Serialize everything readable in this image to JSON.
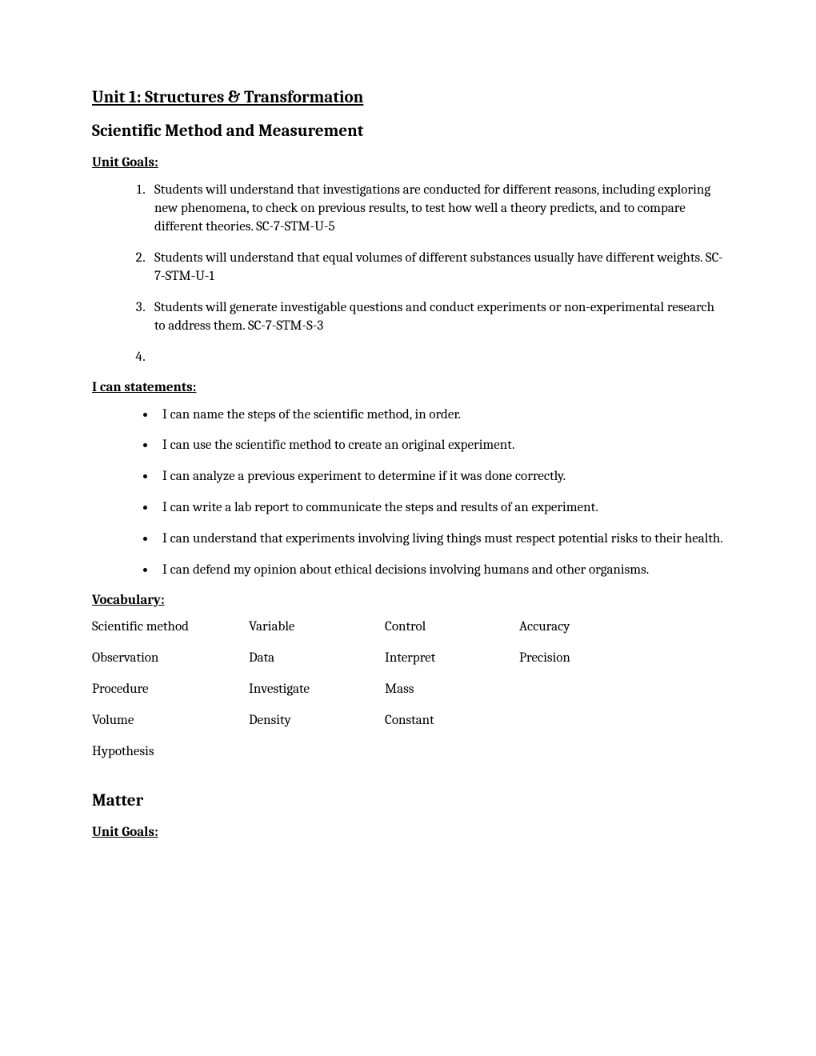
{
  "unit_title": "Unit 1: Structures & Transformation",
  "section1": {
    "title": "Scientific Method and Measurement",
    "goals_heading": "Unit Goals:",
    "goals": [
      "Students will understand that investigations are conducted for different reasons, including exploring new phenomena, to check on previous results, to test how well a theory predicts, and to compare different theories. SC-7-STM-U-5",
      "Students will understand that equal volumes of different substances usually have different weights. SC-7-STM-U-1",
      "Students will generate investigable questions and conduct experiments or non-experimental research to address them. SC-7-STM-S-3",
      ""
    ],
    "ican_heading": "I can statements:",
    "ican": [
      "I can name the steps of the scientific method, in order.",
      "I can use the scientific method to create an original experiment.",
      "I can analyze a previous experiment to determine if it was done correctly.",
      "I can write a lab report to communicate the steps and results of an experiment.",
      "I can understand that experiments involving living things must respect potential risks to their health.",
      "I can defend my opinion about ethical decisions involving humans and other organisms."
    ],
    "vocab_heading": "Vocabulary:",
    "vocab": {
      "r0c0": "Scientific method",
      "r0c1": "Variable",
      "r0c2": "Control",
      "r0c3": "Accuracy",
      "r1c0": "Observation",
      "r1c1": "Data",
      "r1c2": "Interpret",
      "r1c3": "Precision",
      "r2c0": "Procedure",
      "r2c1": "Investigate",
      "r2c2": "Mass",
      "r2c3": "",
      "r3c0": "Volume",
      "r3c1": "Density",
      "r3c2": "Constant",
      "r3c3": "",
      "r4c0": "Hypothesis",
      "r4c1": "",
      "r4c2": "",
      "r4c3": ""
    }
  },
  "section2": {
    "title": "Matter",
    "goals_heading": "Unit Goals:"
  }
}
